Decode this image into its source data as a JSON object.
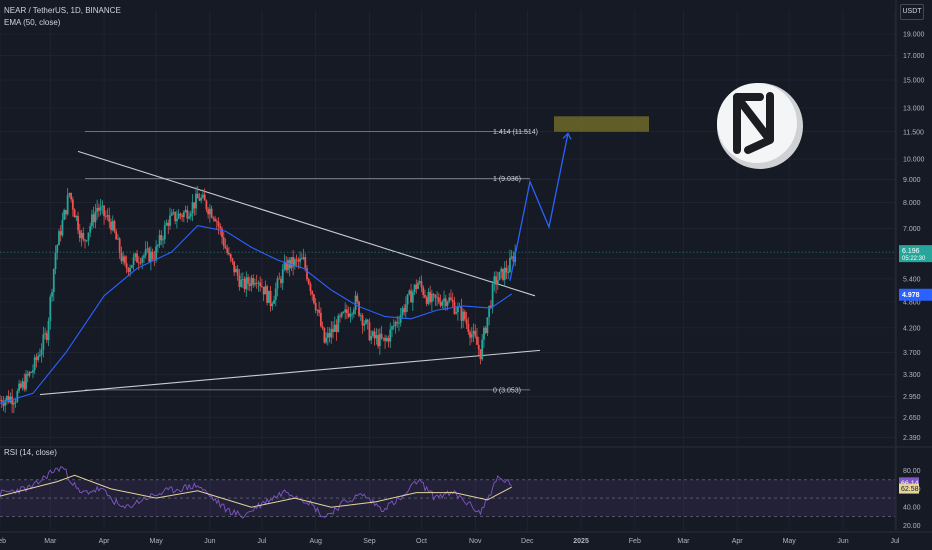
{
  "header": {
    "symbol_line": "NEAR / TetherUS, 1D, BINANCE",
    "ema_label": "EMA (50, close)",
    "rsi_label": "RSI (14, close)",
    "currency_button": "USDT"
  },
  "colors": {
    "background": "#161a25",
    "grid": "#232734",
    "candle_up": "#26a69a",
    "candle_down": "#ef5350",
    "ema": "#2962ff",
    "rsi": "#7e57c2",
    "rsi_ma": "#e5d59b",
    "projection": "#2962ff",
    "target_box": "#6e6a2a",
    "trendline": "#c9ccd3",
    "fib_line": "#8a8e99"
  },
  "chart_data": [
    {
      "type": "candlestick",
      "title": "NEAR / TetherUS, 1D, BINANCE",
      "y_scale": "log",
      "ylim": [
        2.3,
        21.5
      ],
      "y_ticks": [
        "19.000",
        "17.000",
        "15.000",
        "13.000",
        "11.500",
        "10.000",
        "9.000",
        "8.000",
        "7.000",
        "6.000",
        "5.400",
        "4.800",
        "4.200",
        "3.700",
        "3.300",
        "2.950",
        "2.650",
        "2.390"
      ],
      "x_ticks": [
        "Feb",
        "Mar",
        "Apr",
        "May",
        "Jun",
        "Jul",
        "Aug",
        "Sep",
        "Oct",
        "Nov",
        "Dec",
        "2025",
        "Feb",
        "Mar",
        "Apr",
        "May",
        "Jun",
        "Jul"
      ],
      "x_range": [
        "2024-02-01",
        "2025-07-01"
      ],
      "ema_50": [
        {
          "date": "2024-02-01",
          "value": 2.85
        },
        {
          "date": "2024-02-20",
          "value": 3.0
        },
        {
          "date": "2024-03-10",
          "value": 3.7
        },
        {
          "date": "2024-04-01",
          "value": 4.95
        },
        {
          "date": "2024-04-20",
          "value": 5.7
        },
        {
          "date": "2024-05-10",
          "value": 6.2
        },
        {
          "date": "2024-05-25",
          "value": 7.1
        },
        {
          "date": "2024-06-10",
          "value": 6.9
        },
        {
          "date": "2024-06-25",
          "value": 6.35
        },
        {
          "date": "2024-07-10",
          "value": 5.95
        },
        {
          "date": "2024-07-25",
          "value": 5.7
        },
        {
          "date": "2024-08-10",
          "value": 5.1
        },
        {
          "date": "2024-08-25",
          "value": 4.7
        },
        {
          "date": "2024-09-10",
          "value": 4.45
        },
        {
          "date": "2024-09-25",
          "value": 4.4
        },
        {
          "date": "2024-10-10",
          "value": 4.6
        },
        {
          "date": "2024-10-25",
          "value": 4.7
        },
        {
          "date": "2024-11-10",
          "value": 4.65
        },
        {
          "date": "2024-11-22",
          "value": 5.0
        }
      ],
      "candles_ohlc_sampled": [
        {
          "date": "2024-02-01",
          "close": 2.9
        },
        {
          "date": "2024-02-10",
          "close": 2.95
        },
        {
          "date": "2024-02-20",
          "close": 3.4
        },
        {
          "date": "2024-02-28",
          "close": 4.1
        },
        {
          "date": "2024-03-04",
          "close": 6.2
        },
        {
          "date": "2024-03-12",
          "close": 8.4
        },
        {
          "date": "2024-03-20",
          "close": 6.5
        },
        {
          "date": "2024-03-28",
          "close": 7.8
        },
        {
          "date": "2024-04-05",
          "close": 7.2
        },
        {
          "date": "2024-04-13",
          "close": 5.7
        },
        {
          "date": "2024-04-22",
          "close": 6.1
        },
        {
          "date": "2024-04-30",
          "close": 6.1
        },
        {
          "date": "2024-05-08",
          "close": 7.3
        },
        {
          "date": "2024-05-18",
          "close": 7.6
        },
        {
          "date": "2024-05-26",
          "close": 8.2
        },
        {
          "date": "2024-06-04",
          "close": 7.5
        },
        {
          "date": "2024-06-12",
          "close": 6.0
        },
        {
          "date": "2024-06-20",
          "close": 5.2
        },
        {
          "date": "2024-06-28",
          "close": 5.5
        },
        {
          "date": "2024-07-06",
          "close": 4.8
        },
        {
          "date": "2024-07-15",
          "close": 5.8
        },
        {
          "date": "2024-07-25",
          "close": 5.9
        },
        {
          "date": "2024-08-02",
          "close": 4.6
        },
        {
          "date": "2024-08-06",
          "close": 3.9
        },
        {
          "date": "2024-08-14",
          "close": 4.3
        },
        {
          "date": "2024-08-24",
          "close": 4.8
        },
        {
          "date": "2024-09-02",
          "close": 4.0
        },
        {
          "date": "2024-09-10",
          "close": 3.9
        },
        {
          "date": "2024-09-20",
          "close": 4.6
        },
        {
          "date": "2024-09-29",
          "close": 5.3
        },
        {
          "date": "2024-10-06",
          "close": 4.8
        },
        {
          "date": "2024-10-16",
          "close": 4.9
        },
        {
          "date": "2024-10-26",
          "close": 4.4
        },
        {
          "date": "2024-11-04",
          "close": 3.7
        },
        {
          "date": "2024-11-12",
          "close": 5.3
        },
        {
          "date": "2024-11-20",
          "close": 5.7
        },
        {
          "date": "2024-11-24",
          "close": 6.196
        }
      ],
      "last_price_label": "6.196",
      "countdown_label": "05:22:30",
      "ema_price_label": "4.978",
      "fib_levels": [
        {
          "label": "0 (3.053)",
          "value": 3.053
        },
        {
          "label": "1 (9.036)",
          "value": 9.036
        },
        {
          "label": "1.414 (11.514)",
          "value": 11.514
        }
      ]
    },
    {
      "type": "line",
      "title": "RSI (14, close)",
      "y_ticks": [
        "80.00",
        "60.00",
        "40.00",
        "20.00"
      ],
      "ylim": [
        15,
        95
      ],
      "band": [
        30,
        70
      ],
      "current_labels": {
        "rsi": "66.14",
        "rsi_ma": "62.58"
      },
      "rsi": [
        {
          "date": "2024-02-01",
          "value": 55
        },
        {
          "date": "2024-02-20",
          "value": 62
        },
        {
          "date": "2024-03-01",
          "value": 78
        },
        {
          "date": "2024-03-08",
          "value": 84
        },
        {
          "date": "2024-03-18",
          "value": 55
        },
        {
          "date": "2024-03-30",
          "value": 60
        },
        {
          "date": "2024-04-12",
          "value": 38
        },
        {
          "date": "2024-04-25",
          "value": 50
        },
        {
          "date": "2024-05-08",
          "value": 58
        },
        {
          "date": "2024-05-25",
          "value": 64
        },
        {
          "date": "2024-06-10",
          "value": 38
        },
        {
          "date": "2024-06-20",
          "value": 30
        },
        {
          "date": "2024-07-01",
          "value": 44
        },
        {
          "date": "2024-07-15",
          "value": 58
        },
        {
          "date": "2024-07-28",
          "value": 46
        },
        {
          "date": "2024-08-06",
          "value": 29
        },
        {
          "date": "2024-08-18",
          "value": 46
        },
        {
          "date": "2024-08-28",
          "value": 54
        },
        {
          "date": "2024-09-08",
          "value": 38
        },
        {
          "date": "2024-09-20",
          "value": 50
        },
        {
          "date": "2024-09-29",
          "value": 70
        },
        {
          "date": "2024-10-08",
          "value": 52
        },
        {
          "date": "2024-10-20",
          "value": 55
        },
        {
          "date": "2024-11-04",
          "value": 34
        },
        {
          "date": "2024-11-14",
          "value": 72
        },
        {
          "date": "2024-11-22",
          "value": 66
        }
      ],
      "rsi_ma": [
        {
          "date": "2024-02-01",
          "value": 52
        },
        {
          "date": "2024-03-05",
          "value": 68
        },
        {
          "date": "2024-03-15",
          "value": 75
        },
        {
          "date": "2024-04-05",
          "value": 60
        },
        {
          "date": "2024-05-01",
          "value": 50
        },
        {
          "date": "2024-05-25",
          "value": 58
        },
        {
          "date": "2024-06-25",
          "value": 40
        },
        {
          "date": "2024-07-20",
          "value": 50
        },
        {
          "date": "2024-08-10",
          "value": 40
        },
        {
          "date": "2024-09-05",
          "value": 46
        },
        {
          "date": "2024-09-28",
          "value": 56
        },
        {
          "date": "2024-10-20",
          "value": 56
        },
        {
          "date": "2024-11-08",
          "value": 48
        },
        {
          "date": "2024-11-22",
          "value": 62
        }
      ]
    }
  ],
  "logo": {
    "name": "NEAR"
  }
}
